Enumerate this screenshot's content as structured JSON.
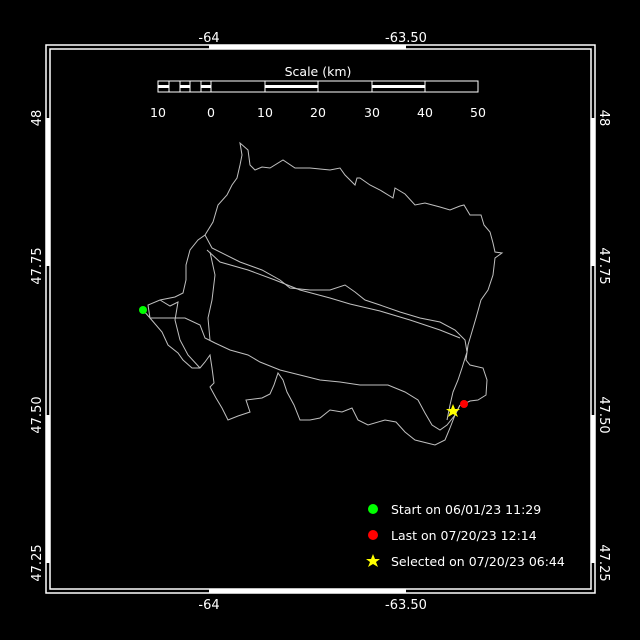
{
  "map": {
    "lon_ticks": [
      "-64",
      "-63.50"
    ],
    "lat_ticks": [
      "48",
      "47.75",
      "47.50",
      "47.25"
    ],
    "extent": {
      "lon_range": [
        -64.41,
        -63.03
      ],
      "lat_range": [
        47.16,
        48.24
      ]
    },
    "background": "#000000",
    "track_color": "#c0c0c0"
  },
  "scale_bar": {
    "title": "Scale (km)",
    "labels": [
      "10",
      "0",
      "10",
      "20",
      "30",
      "40",
      "50"
    ]
  },
  "legend": {
    "start": {
      "label": "Start on 06/01/23 11:29",
      "color": "#00ff00",
      "icon": "circle"
    },
    "last": {
      "label": "Last on 07/20/23 12:14",
      "color": "#ff0000",
      "icon": "circle"
    },
    "selected": {
      "label": "Selected on 07/20/23 06:44",
      "color": "#ffff00",
      "icon": "star"
    }
  }
}
